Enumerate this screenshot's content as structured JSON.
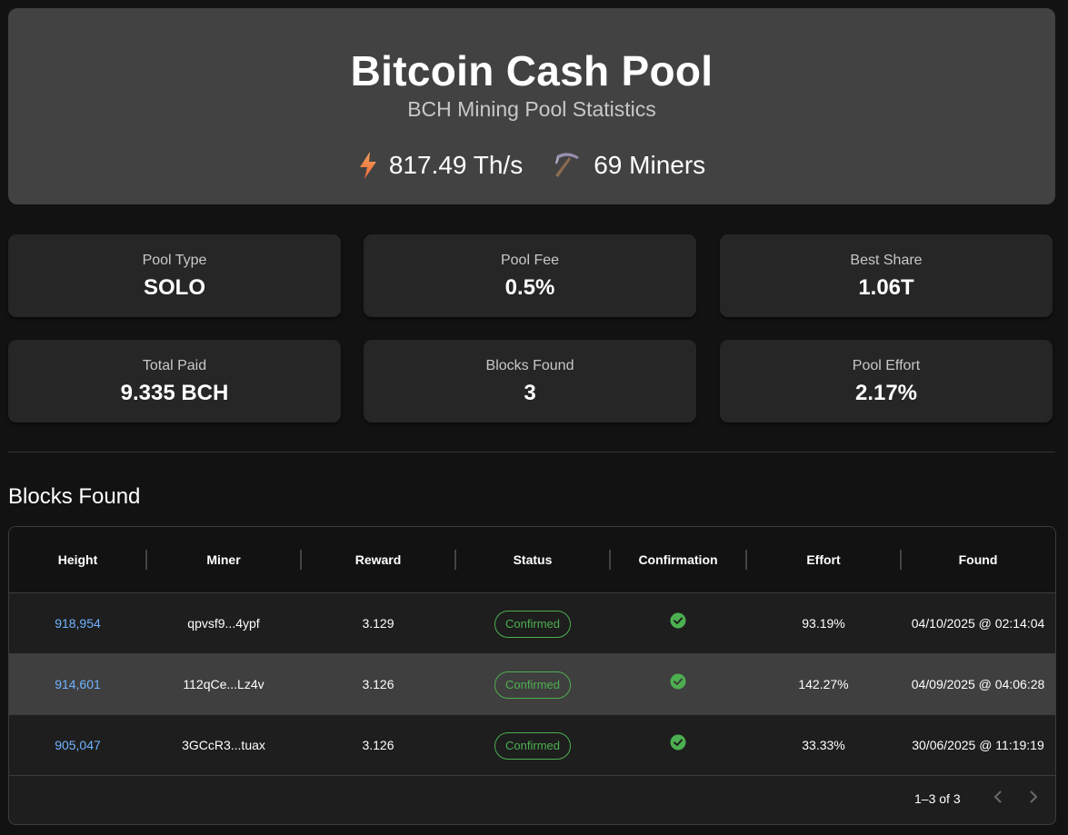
{
  "header": {
    "title": "Bitcoin Cash Pool",
    "subtitle": "BCH Mining Pool Statistics",
    "hashrate": "817.49 Th/s",
    "miners": "69 Miners",
    "hashrate_icon": "lightning-bolt-icon",
    "miners_icon": "pickaxe-icon"
  },
  "cards": [
    {
      "label": "Pool Type",
      "value": "SOLO"
    },
    {
      "label": "Pool Fee",
      "value": "0.5%"
    },
    {
      "label": "Best Share",
      "value": "1.06T"
    },
    {
      "label": "Total Paid",
      "value": "9.335 BCH"
    },
    {
      "label": "Blocks Found",
      "value": "3"
    },
    {
      "label": "Pool Effort",
      "value": "2.17%"
    }
  ],
  "blocks_section": {
    "title": "Blocks Found",
    "columns": [
      "Height",
      "Miner",
      "Reward",
      "Status",
      "Confirmation",
      "Effort",
      "Found"
    ],
    "rows": [
      {
        "height": "918,954",
        "miner": "qpvsf9...4ypf",
        "reward": "3.129",
        "status": "Confirmed",
        "effort": "93.19%",
        "found": "04/10/2025 @ 02:14:04"
      },
      {
        "height": "914,601",
        "miner": "112qCe...Lz4v",
        "reward": "3.126",
        "status": "Confirmed",
        "effort": "142.27%",
        "found": "04/09/2025 @ 04:06:28"
      },
      {
        "height": "905,047",
        "miner": "3GCcR3...tuax",
        "reward": "3.126",
        "status": "Confirmed",
        "effort": "33.33%",
        "found": "30/06/2025 @ 11:19:19"
      }
    ],
    "pagination": "1–3 of 3"
  },
  "colors": {
    "accent_link": "#6fb3ff",
    "status_green": "#4caf50",
    "bolt_orange": "#f08a4b"
  }
}
